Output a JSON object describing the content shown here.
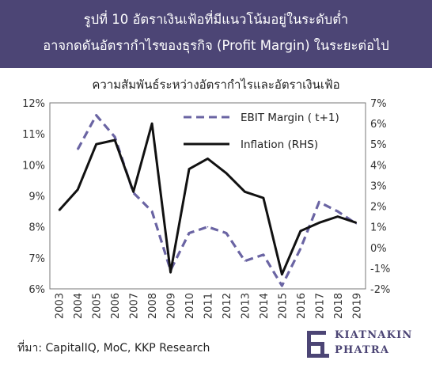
{
  "banner": {
    "line1": "รูปที่ 10 อัตราเงินเฟ้อที่มีแนวโน้มอยู่ในระดับต่ำ",
    "line2": "อาจกดดันอัตรากำไรของธุรกิจ (Profit Margin) ในระยะต่อไป"
  },
  "source_text": "ที่มา: CapitalIQ, MoC, KKP Research",
  "logo": {
    "line1": "KIATNAKIN",
    "line2": "PHATRA",
    "color": "#4c4575"
  },
  "colors": {
    "banner": "#4c4575",
    "ebit": "#6a64a3",
    "inflation": "#111111"
  },
  "chart_data": {
    "type": "line",
    "title": "ความสัมพันธ์ระหว่างอัตรากำไรและอัตราเงินเฟ้อ",
    "x": [
      "2003",
      "2004",
      "2005",
      "2006",
      "2007",
      "2008",
      "2009",
      "2010",
      "2011",
      "2012",
      "2013",
      "2014",
      "2015",
      "2016",
      "2017",
      "2018",
      "2019"
    ],
    "xlabel": "",
    "ylabel": "",
    "y_left": {
      "ylim": [
        6,
        12
      ],
      "ticks": [
        "6%",
        "7%",
        "8%",
        "9%",
        "10%",
        "11%",
        "12%"
      ]
    },
    "y_right": {
      "ylim": [
        -2,
        7
      ],
      "ticks": [
        "-2%",
        "-1%",
        "0%",
        "1%",
        "2%",
        "3%",
        "4%",
        "5%",
        "6%",
        "7%"
      ]
    },
    "grid": false,
    "legend_position": "top-right",
    "series": [
      {
        "name": "EBIT Margin ( t+1)",
        "axis": "left",
        "style": "dashed",
        "x": [
          "2004",
          "2005",
          "2006",
          "2007",
          "2008",
          "2009",
          "2010",
          "2011",
          "2012",
          "2013",
          "2014",
          "2015",
          "2016",
          "2017",
          "2018",
          "2019"
        ],
        "values": [
          10.5,
          11.6,
          10.9,
          9.1,
          8.5,
          6.6,
          7.8,
          8.0,
          7.8,
          6.9,
          7.1,
          6.1,
          7.3,
          8.8,
          8.5,
          8.1
        ]
      },
      {
        "name": "Inflation (RHS)",
        "axis": "right",
        "style": "solid",
        "x": [
          "2003",
          "2004",
          "2005",
          "2006",
          "2007",
          "2008",
          "2009",
          "2010",
          "2011",
          "2012",
          "2013",
          "2014",
          "2015",
          "2016",
          "2017",
          "2018",
          "2019"
        ],
        "values": [
          1.8,
          2.8,
          5.0,
          5.2,
          2.7,
          6.0,
          -1.2,
          3.8,
          4.3,
          3.6,
          2.7,
          2.4,
          -1.3,
          0.8,
          1.2,
          1.5,
          1.2
        ]
      }
    ]
  }
}
